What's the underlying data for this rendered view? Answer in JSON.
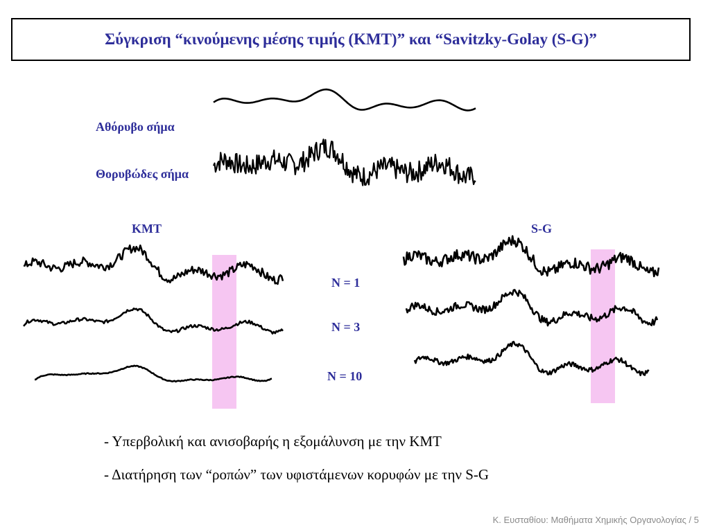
{
  "title": "Σύγκριση “κινούμενης μέσης τιμής (ΚΜΤ)” και “Savitzky-Golay (S-G)”",
  "signals": {
    "clean_label": "Αθόρυβο σήμα",
    "noisy_label": "Θορυβώδες σήμα"
  },
  "panels": {
    "left_label": "ΚΜΤ",
    "right_label": "S-G"
  },
  "n_labels": [
    "N = 1",
    "N = 3",
    "N = 10"
  ],
  "bullets": [
    "- Υπερβολική και ανισοβαρής η εξομάλυνση με την ΚΜΤ",
    "- Διατήρηση των “ροπών” των υφιστάμενων κορυφών με την S-G"
  ],
  "footer": "Κ. Ευσταθίου: Μαθήματα Χημικής Οργανολογίας / 5",
  "colors": {
    "accent": "#2e2e9a",
    "highlight": "#f6c6f2",
    "footer": "#8a8a8a"
  }
}
